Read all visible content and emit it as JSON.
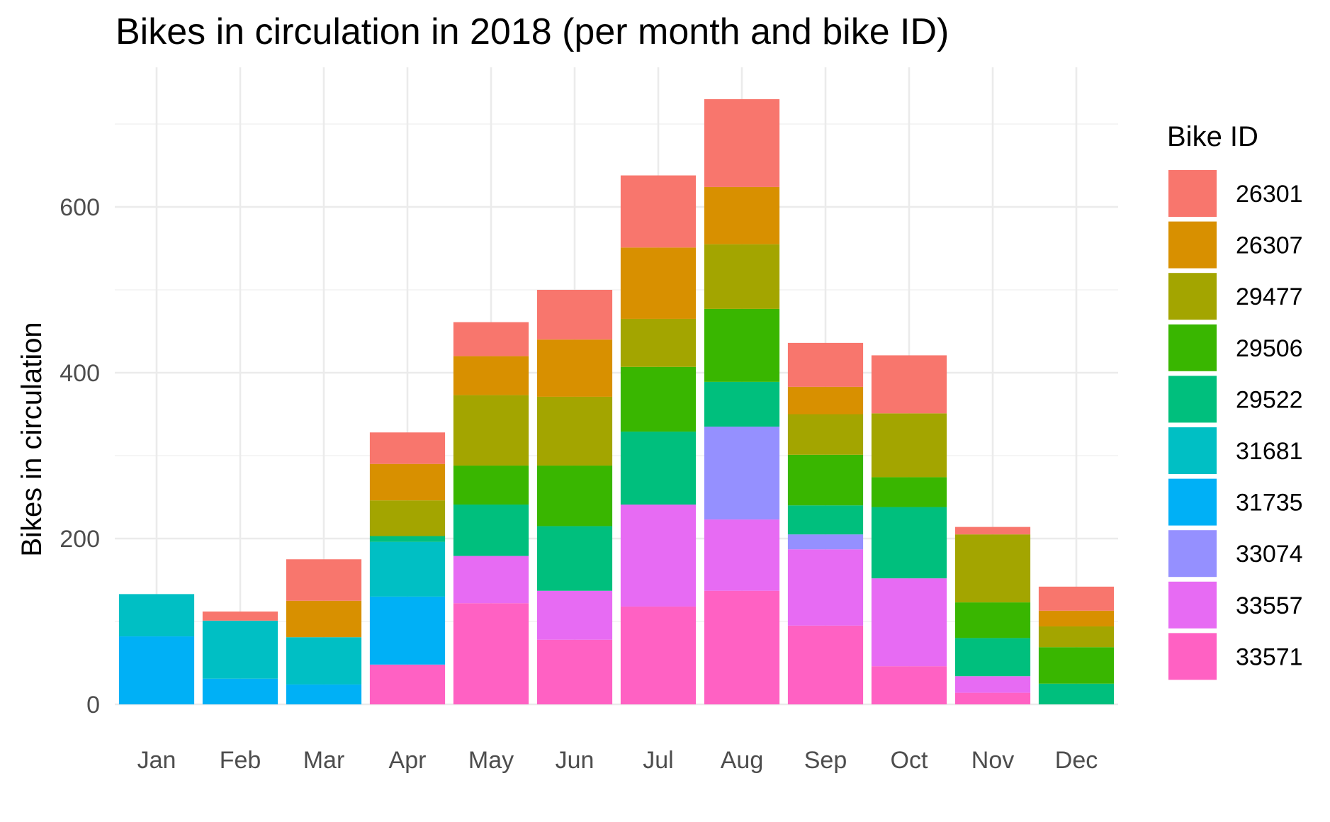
{
  "chart_data": {
    "type": "bar",
    "stacked": true,
    "title": "Bikes in circulation in 2018 (per month and bike ID)",
    "xlabel": "",
    "ylabel": "Bikes in circulation",
    "categories": [
      "Jan",
      "Feb",
      "Mar",
      "Apr",
      "May",
      "Jun",
      "Jul",
      "Aug",
      "Sep",
      "Oct",
      "Nov",
      "Dec"
    ],
    "ylim": [
      0,
      735
    ],
    "yticks": [
      0,
      200,
      400,
      600
    ],
    "grid": true,
    "legend": {
      "title": "Bike ID",
      "position": "right"
    },
    "series": [
      {
        "name": "33571",
        "color": "#FF61C3",
        "values": [
          0,
          0,
          0,
          48,
          122,
          78,
          118,
          137,
          95,
          46,
          14,
          0
        ]
      },
      {
        "name": "33557",
        "color": "#E76BF3",
        "values": [
          0,
          0,
          0,
          0,
          57,
          59,
          123,
          86,
          92,
          106,
          20,
          0
        ]
      },
      {
        "name": "33074",
        "color": "#9590FF",
        "values": [
          0,
          0,
          0,
          0,
          0,
          0,
          0,
          112,
          18,
          0,
          0,
          0
        ]
      },
      {
        "name": "31735",
        "color": "#00B0F6",
        "values": [
          82,
          31,
          24,
          82,
          0,
          0,
          0,
          0,
          0,
          0,
          0,
          0
        ]
      },
      {
        "name": "31681",
        "color": "#00BFC4",
        "values": [
          51,
          70,
          57,
          66,
          0,
          0,
          0,
          0,
          0,
          0,
          0,
          0
        ]
      },
      {
        "name": "29522",
        "color": "#00BF7D",
        "values": [
          0,
          0,
          0,
          7,
          62,
          78,
          88,
          54,
          35,
          86,
          46,
          25
        ]
      },
      {
        "name": "29506",
        "color": "#39B600",
        "values": [
          0,
          0,
          0,
          0,
          47,
          73,
          78,
          88,
          61,
          36,
          43,
          44
        ]
      },
      {
        "name": "29477",
        "color": "#A3A500",
        "values": [
          0,
          0,
          0,
          43,
          85,
          83,
          58,
          78,
          49,
          77,
          82,
          25
        ]
      },
      {
        "name": "26307",
        "color": "#D89000",
        "values": [
          0,
          0,
          44,
          44,
          47,
          69,
          86,
          69,
          33,
          0,
          0,
          19
        ]
      },
      {
        "name": "26301",
        "color": "#F8766D",
        "values": [
          0,
          11,
          50,
          38,
          41,
          60,
          87,
          106,
          53,
          70,
          9,
          29
        ]
      }
    ]
  }
}
